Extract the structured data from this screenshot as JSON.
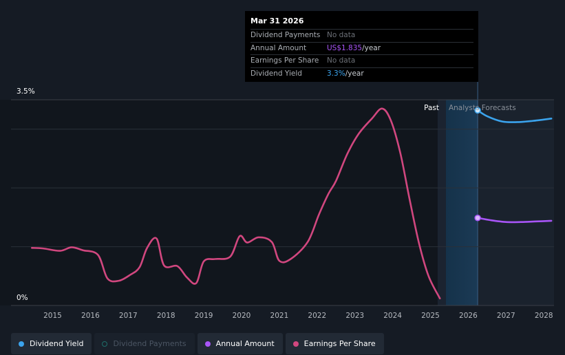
{
  "chart_data": {
    "type": "line",
    "y_top_label": "3.5%",
    "y_bottom_label": "0%",
    "x_tick_labels": [
      "2015",
      "2016",
      "2017",
      "2018",
      "2019",
      "2020",
      "2021",
      "2022",
      "2023",
      "2024",
      "2025",
      "2026",
      "2027",
      "2028"
    ],
    "divider_labels": {
      "past": "Past",
      "forecast": "Analysts Forecasts"
    },
    "series": [
      {
        "name": "Earnings Per Share",
        "color": "#d1477f",
        "points": [
          [
            2014.45,
            0.98
          ],
          [
            2014.75,
            0.97
          ],
          [
            2015.2,
            0.93
          ],
          [
            2015.5,
            0.99
          ],
          [
            2015.8,
            0.94
          ],
          [
            2016.2,
            0.86
          ],
          [
            2016.45,
            0.46
          ],
          [
            2016.75,
            0.42
          ],
          [
            2017.05,
            0.52
          ],
          [
            2017.3,
            0.65
          ],
          [
            2017.5,
            0.98
          ],
          [
            2017.75,
            1.14
          ],
          [
            2017.95,
            0.68
          ],
          [
            2018.3,
            0.67
          ],
          [
            2018.55,
            0.48
          ],
          [
            2018.8,
            0.38
          ],
          [
            2019.0,
            0.75
          ],
          [
            2019.3,
            0.79
          ],
          [
            2019.7,
            0.83
          ],
          [
            2019.95,
            1.18
          ],
          [
            2020.15,
            1.07
          ],
          [
            2020.45,
            1.16
          ],
          [
            2020.8,
            1.08
          ],
          [
            2021.0,
            0.76
          ],
          [
            2021.3,
            0.79
          ],
          [
            2021.75,
            1.08
          ],
          [
            2022.05,
            1.55
          ],
          [
            2022.3,
            1.9
          ],
          [
            2022.5,
            2.12
          ],
          [
            2022.8,
            2.58
          ],
          [
            2023.1,
            2.92
          ],
          [
            2023.45,
            3.18
          ],
          [
            2023.72,
            3.35
          ],
          [
            2023.95,
            3.15
          ],
          [
            2024.2,
            2.6
          ],
          [
            2024.45,
            1.8
          ],
          [
            2024.7,
            1.05
          ],
          [
            2024.95,
            0.5
          ],
          [
            2025.25,
            0.12
          ]
        ]
      },
      {
        "name": "Dividend Yield",
        "color": "#3ba3ec",
        "points": [
          [
            2026.25,
            3.32
          ],
          [
            2026.5,
            3.22
          ],
          [
            2026.9,
            3.13
          ],
          [
            2027.3,
            3.12
          ],
          [
            2027.7,
            3.14
          ],
          [
            2028.2,
            3.18
          ]
        ]
      },
      {
        "name": "Annual Amount",
        "color": "#a855f7",
        "points": [
          [
            2026.25,
            1.49
          ],
          [
            2026.6,
            1.45
          ],
          [
            2027.0,
            1.42
          ],
          [
            2027.4,
            1.42
          ],
          [
            2027.8,
            1.43
          ],
          [
            2028.2,
            1.44
          ]
        ]
      }
    ],
    "ylim": [
      0,
      3.5
    ],
    "xlim": [
      2014.15,
      2028.3
    ]
  },
  "tooltip": {
    "date": "Mar 31 2026",
    "rows": [
      {
        "label": "Dividend Payments",
        "value": "No data",
        "highlight": "",
        "unit": ""
      },
      {
        "label": "Annual Amount",
        "value": "US$1.835",
        "highlight": "purple",
        "unit": "/year"
      },
      {
        "label": "Earnings Per Share",
        "value": "No data",
        "highlight": "",
        "unit": ""
      },
      {
        "label": "Dividend Yield",
        "value": "3.3%",
        "highlight": "blue",
        "unit": "/year"
      }
    ]
  },
  "legend": [
    {
      "label": "Dividend Yield",
      "color": "#3ba3ec",
      "active": true
    },
    {
      "label": "Dividend Payments",
      "color": "#1f6f6a",
      "active": false
    },
    {
      "label": "Annual Amount",
      "color": "#a855f7",
      "active": true
    },
    {
      "label": "Earnings Per Share",
      "color": "#d1477f",
      "active": true
    }
  ]
}
